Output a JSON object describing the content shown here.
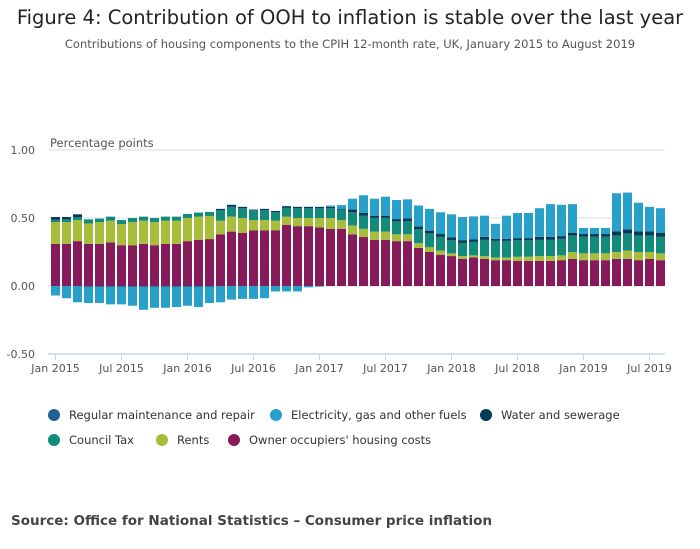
{
  "chart_data": {
    "type": "bar",
    "stacked": true,
    "title": "Figure 4: Contribution of OOH to inflation is stable over the last year",
    "subtitle": "Contributions of housing components to the CPIH 12-month rate, UK, January 2015 to August 2019",
    "ylabel": "Percentage points",
    "xlabel": "",
    "ylim": [
      -0.5,
      1.0
    ],
    "yticks": [
      "1.00",
      "0.50",
      "0.00",
      "-0.50"
    ],
    "xtick_labels": [
      {
        "i": 0,
        "label": "Jan 2015"
      },
      {
        "i": 6,
        "label": "Jul 2015"
      },
      {
        "i": 12,
        "label": "Jan 2016"
      },
      {
        "i": 18,
        "label": "Jul 2016"
      },
      {
        "i": 24,
        "label": "Jan 2017"
      },
      {
        "i": 30,
        "label": "Jul 2017"
      },
      {
        "i": 36,
        "label": "Jan 2018"
      },
      {
        "i": 42,
        "label": "Jul 2018"
      },
      {
        "i": 48,
        "label": "Jan 2019"
      },
      {
        "i": 54,
        "label": "Jul 2019"
      }
    ],
    "start": "Jan 2015",
    "n_months": 56,
    "series": [
      {
        "name": "Owner occupiers' housing costs",
        "color": "#871a5b",
        "values": [
          0.31,
          0.31,
          0.33,
          0.31,
          0.31,
          0.32,
          0.3,
          0.3,
          0.31,
          0.3,
          0.31,
          0.31,
          0.33,
          0.34,
          0.345,
          0.38,
          0.4,
          0.39,
          0.41,
          0.41,
          0.41,
          0.45,
          0.44,
          0.44,
          0.43,
          0.42,
          0.42,
          0.38,
          0.36,
          0.34,
          0.34,
          0.33,
          0.33,
          0.28,
          0.25,
          0.23,
          0.22,
          0.2,
          0.21,
          0.2,
          0.19,
          0.19,
          0.185,
          0.185,
          0.185,
          0.185,
          0.19,
          0.2,
          0.19,
          0.19,
          0.19,
          0.2,
          0.2,
          0.19,
          0.2,
          0.19
        ]
      },
      {
        "name": "Rents",
        "color": "#a8bd3a",
        "values": [
          0.16,
          0.16,
          0.155,
          0.15,
          0.16,
          0.16,
          0.155,
          0.17,
          0.17,
          0.17,
          0.17,
          0.17,
          0.17,
          0.17,
          0.17,
          0.1,
          0.11,
          0.11,
          0.075,
          0.075,
          0.07,
          0.06,
          0.06,
          0.06,
          0.07,
          0.08,
          0.065,
          0.065,
          0.06,
          0.06,
          0.06,
          0.05,
          0.05,
          0.035,
          0.035,
          0.03,
          0.02,
          0.02,
          0.015,
          0.02,
          0.02,
          0.02,
          0.03,
          0.03,
          0.035,
          0.035,
          0.035,
          0.05,
          0.05,
          0.05,
          0.05,
          0.05,
          0.06,
          0.06,
          0.05,
          0.05
        ]
      },
      {
        "name": "Council Tax",
        "color": "#118c7b",
        "values": [
          0.015,
          0.02,
          0.02,
          0.03,
          0.025,
          0.03,
          0.03,
          0.03,
          0.03,
          0.03,
          0.03,
          0.03,
          0.03,
          0.03,
          0.03,
          0.075,
          0.07,
          0.07,
          0.07,
          0.07,
          0.06,
          0.065,
          0.07,
          0.07,
          0.07,
          0.07,
          0.07,
          0.095,
          0.095,
          0.1,
          0.1,
          0.095,
          0.095,
          0.1,
          0.1,
          0.1,
          0.095,
          0.095,
          0.1,
          0.12,
          0.12,
          0.12,
          0.12,
          0.12,
          0.12,
          0.12,
          0.12,
          0.12,
          0.12,
          0.12,
          0.12,
          0.12,
          0.125,
          0.12,
          0.12,
          0.12
        ]
      },
      {
        "name": "Regular maintenance and repair",
        "color": "#206095",
        "values": [
          0.002,
          0.002,
          0.002,
          0,
          0,
          0,
          0,
          0,
          0,
          0,
          0,
          0,
          0,
          0,
          0,
          0.002,
          0.002,
          0.002,
          0.002,
          0.002,
          0.002,
          0.002,
          0.002,
          0.002,
          0.002,
          0.002,
          0.002,
          0.002,
          0.002,
          0.002,
          0.002,
          0.002,
          0.002,
          0.002,
          0.002,
          0.002,
          0.002,
          0.002,
          0.002,
          0.002,
          0.002,
          0.002,
          0.002,
          0.002,
          0.002,
          0.002,
          0.002,
          0.002,
          0.002,
          0.002,
          0.002,
          0.002,
          0.002,
          0.002,
          0.002,
          0.002
        ]
      },
      {
        "name": "Water and sewerage",
        "color": "#003c57",
        "values": [
          0.02,
          0.015,
          0.02,
          -0.005,
          -0.005,
          -0.005,
          -0.005,
          -0.005,
          -0.005,
          -0.005,
          -0.005,
          -0.005,
          -0.005,
          -0.005,
          -0.005,
          0.01,
          0.015,
          0.01,
          0.005,
          0.01,
          0.01,
          0.01,
          0.01,
          0.01,
          0.01,
          0.01,
          0.008,
          0.02,
          0.02,
          0.015,
          0.015,
          0.015,
          0.02,
          0.02,
          0.02,
          0.02,
          0.02,
          0.02,
          0.015,
          0.02,
          0.015,
          0.015,
          0.015,
          0.015,
          0.02,
          0.02,
          0.02,
          0.02,
          0.02,
          0.02,
          0.02,
          0.03,
          0.03,
          0.03,
          0.03,
          0.03
        ]
      },
      {
        "name": "Electricity, gas and other fuels",
        "color": "#27a0cc",
        "values": [
          -0.07,
          -0.09,
          -0.12,
          -0.12,
          -0.12,
          -0.13,
          -0.13,
          -0.14,
          -0.17,
          -0.155,
          -0.155,
          -0.15,
          -0.14,
          -0.15,
          -0.12,
          -0.12,
          -0.1,
          -0.095,
          -0.095,
          -0.09,
          -0.04,
          -0.04,
          -0.04,
          -0.01,
          -0.005,
          0.01,
          0.03,
          0.08,
          0.13,
          0.125,
          0.14,
          0.14,
          0.14,
          0.155,
          0.16,
          0.16,
          0.17,
          0.17,
          0.17,
          0.155,
          0.11,
          0.17,
          0.185,
          0.185,
          0.21,
          0.24,
          0.23,
          0.21,
          0.045,
          0.045,
          0.045,
          0.28,
          0.27,
          0.21,
          0.18,
          0.18
        ]
      }
    ],
    "legend": [
      "Regular maintenance and repair",
      "Electricity, gas and other fuels",
      "Water and sewerage",
      "Council Tax",
      "Rents",
      "Owner occupiers' housing costs"
    ],
    "legend_position": "bottom"
  },
  "source": "Source: Office for National Statistics – Consumer price inflation"
}
